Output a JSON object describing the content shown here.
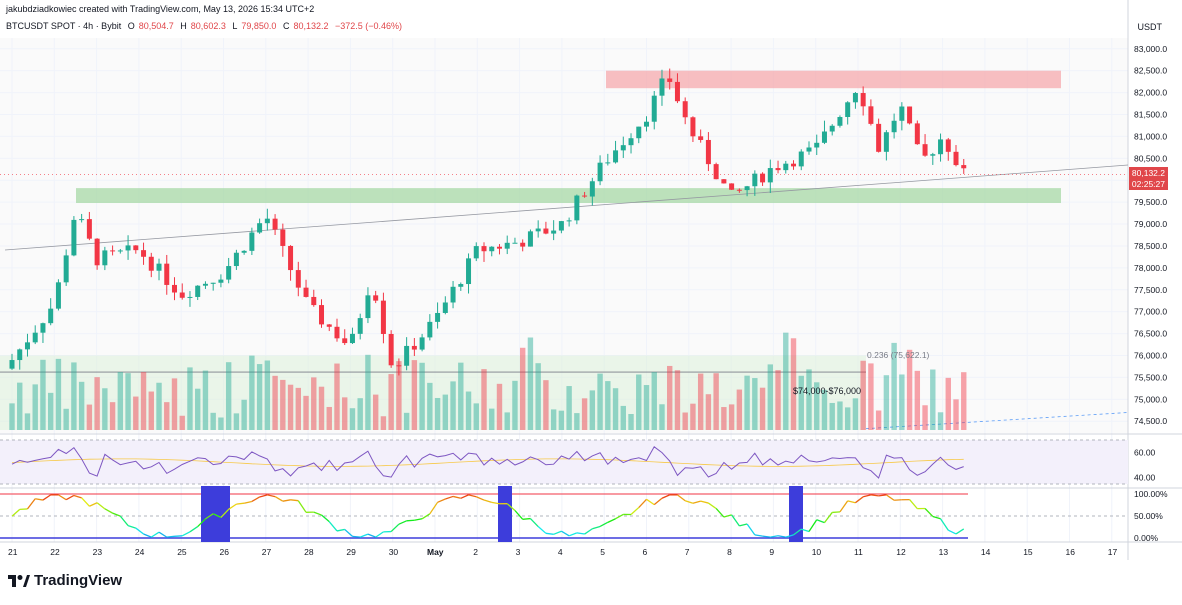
{
  "header": {
    "credit": "jakubdziadkowiec created with TradingView.com, May 13, 2026 15:34 UTC+2",
    "symbol": "BTCUSDT SPOT · 4h · Bybit",
    "open_label": "O",
    "open": "80,504.7",
    "high_label": "H",
    "high": "80,602.3",
    "low_label": "L",
    "low": "79,850.0",
    "close_label": "C",
    "close": "80,132.2",
    "change": "−372.5 (−0.46%)",
    "quote_currency": "USDT"
  },
  "price_axis": {
    "ticks": [
      "83,000.0",
      "82,500.0",
      "82,000.0",
      "81,500.0",
      "81,000.0",
      "80,500.0",
      "80,000.0",
      "79,500.0",
      "79,000.0",
      "78,500.0",
      "78,000.0",
      "77,500.0",
      "77,000.0",
      "76,500.0",
      "76,000.0",
      "75,500.0",
      "75,000.0",
      "74,500.0"
    ],
    "ylim": [
      74300,
      83200
    ],
    "last_price": "80,132.2",
    "countdown": "02:25:27"
  },
  "rsi_axis": {
    "ticks": [
      "60.00",
      "40.00"
    ]
  },
  "stoch_axis": {
    "ticks": [
      "100.00%",
      "50.00%",
      "0.00%"
    ]
  },
  "time_axis": {
    "labels": [
      "21",
      "22",
      "23",
      "24",
      "25",
      "26",
      "27",
      "28",
      "29",
      "30",
      "May",
      "2",
      "3",
      "4",
      "5",
      "6",
      "7",
      "8",
      "9",
      "10",
      "11",
      "12",
      "13",
      "14",
      "15",
      "16",
      "17"
    ]
  },
  "annotations": {
    "fib": "0.236 (75,622.1)",
    "range": "$74,000-$76,000"
  },
  "zones": [
    {
      "kind": "resistance",
      "low": 82100,
      "high": 82500,
      "color": "#f5a9ae"
    },
    {
      "kind": "support",
      "low": 79480,
      "high": 79820,
      "color": "#a7d8a6"
    },
    {
      "kind": "range",
      "low": 74000,
      "high": 76000,
      "color": "#d9efd8"
    }
  ],
  "colors": {
    "up": "#22ab94",
    "down": "#f23645",
    "rsi": "#7e57c2",
    "stoch_band": "#3d3ddb"
  },
  "brand": {
    "name": "TradingView",
    "icon": "tradingview-logo-icon"
  },
  "chart_data": {
    "type": "candlestick",
    "title": "BTCUSDT SPOT · 4h · Bybit",
    "xlabel": "",
    "ylabel": "USDT",
    "x_range": [
      "21",
      "17"
    ],
    "ylim": [
      74300,
      83200
    ],
    "candle_count": 124,
    "anchors": [
      {
        "x": "21",
        "close": 75900
      },
      {
        "x": "22",
        "close": 77200
      },
      {
        "x": "22.5",
        "close": 79300
      },
      {
        "x": "23",
        "close": 78200
      },
      {
        "x": "24",
        "close": 78400
      },
      {
        "x": "25",
        "close": 77400
      },
      {
        "x": "26",
        "close": 77900
      },
      {
        "x": "27",
        "close": 79200
      },
      {
        "x": "28",
        "close": 77100
      },
      {
        "x": "29",
        "close": 76200
      },
      {
        "x": "29.5",
        "close": 77800
      },
      {
        "x": "30",
        "close": 75700
      },
      {
        "x": "May",
        "close": 76800
      },
      {
        "x": "2",
        "close": 78400
      },
      {
        "x": "3",
        "close": 78600
      },
      {
        "x": "4",
        "close": 79000
      },
      {
        "x": "5",
        "close": 80400
      },
      {
        "x": "6",
        "close": 81500
      },
      {
        "x": "6.5",
        "close": 82400
      },
      {
        "x": "7",
        "close": 81200
      },
      {
        "x": "8",
        "close": 79600
      },
      {
        "x": "9",
        "close": 80300
      },
      {
        "x": "10",
        "close": 80700
      },
      {
        "x": "11",
        "close": 82200
      },
      {
        "x": "11.5",
        "close": 80700
      },
      {
        "x": "12",
        "close": 81700
      },
      {
        "x": "12.5",
        "close": 80400
      },
      {
        "x": "13",
        "close": 81000
      },
      {
        "x": "13.5",
        "close": 80132
      }
    ],
    "series": [
      {
        "name": "RSI",
        "range": [
          35,
          70
        ]
      },
      {
        "name": "Stoch RSI",
        "range": [
          0,
          100
        ]
      }
    ],
    "grid": true,
    "legend": "none"
  }
}
